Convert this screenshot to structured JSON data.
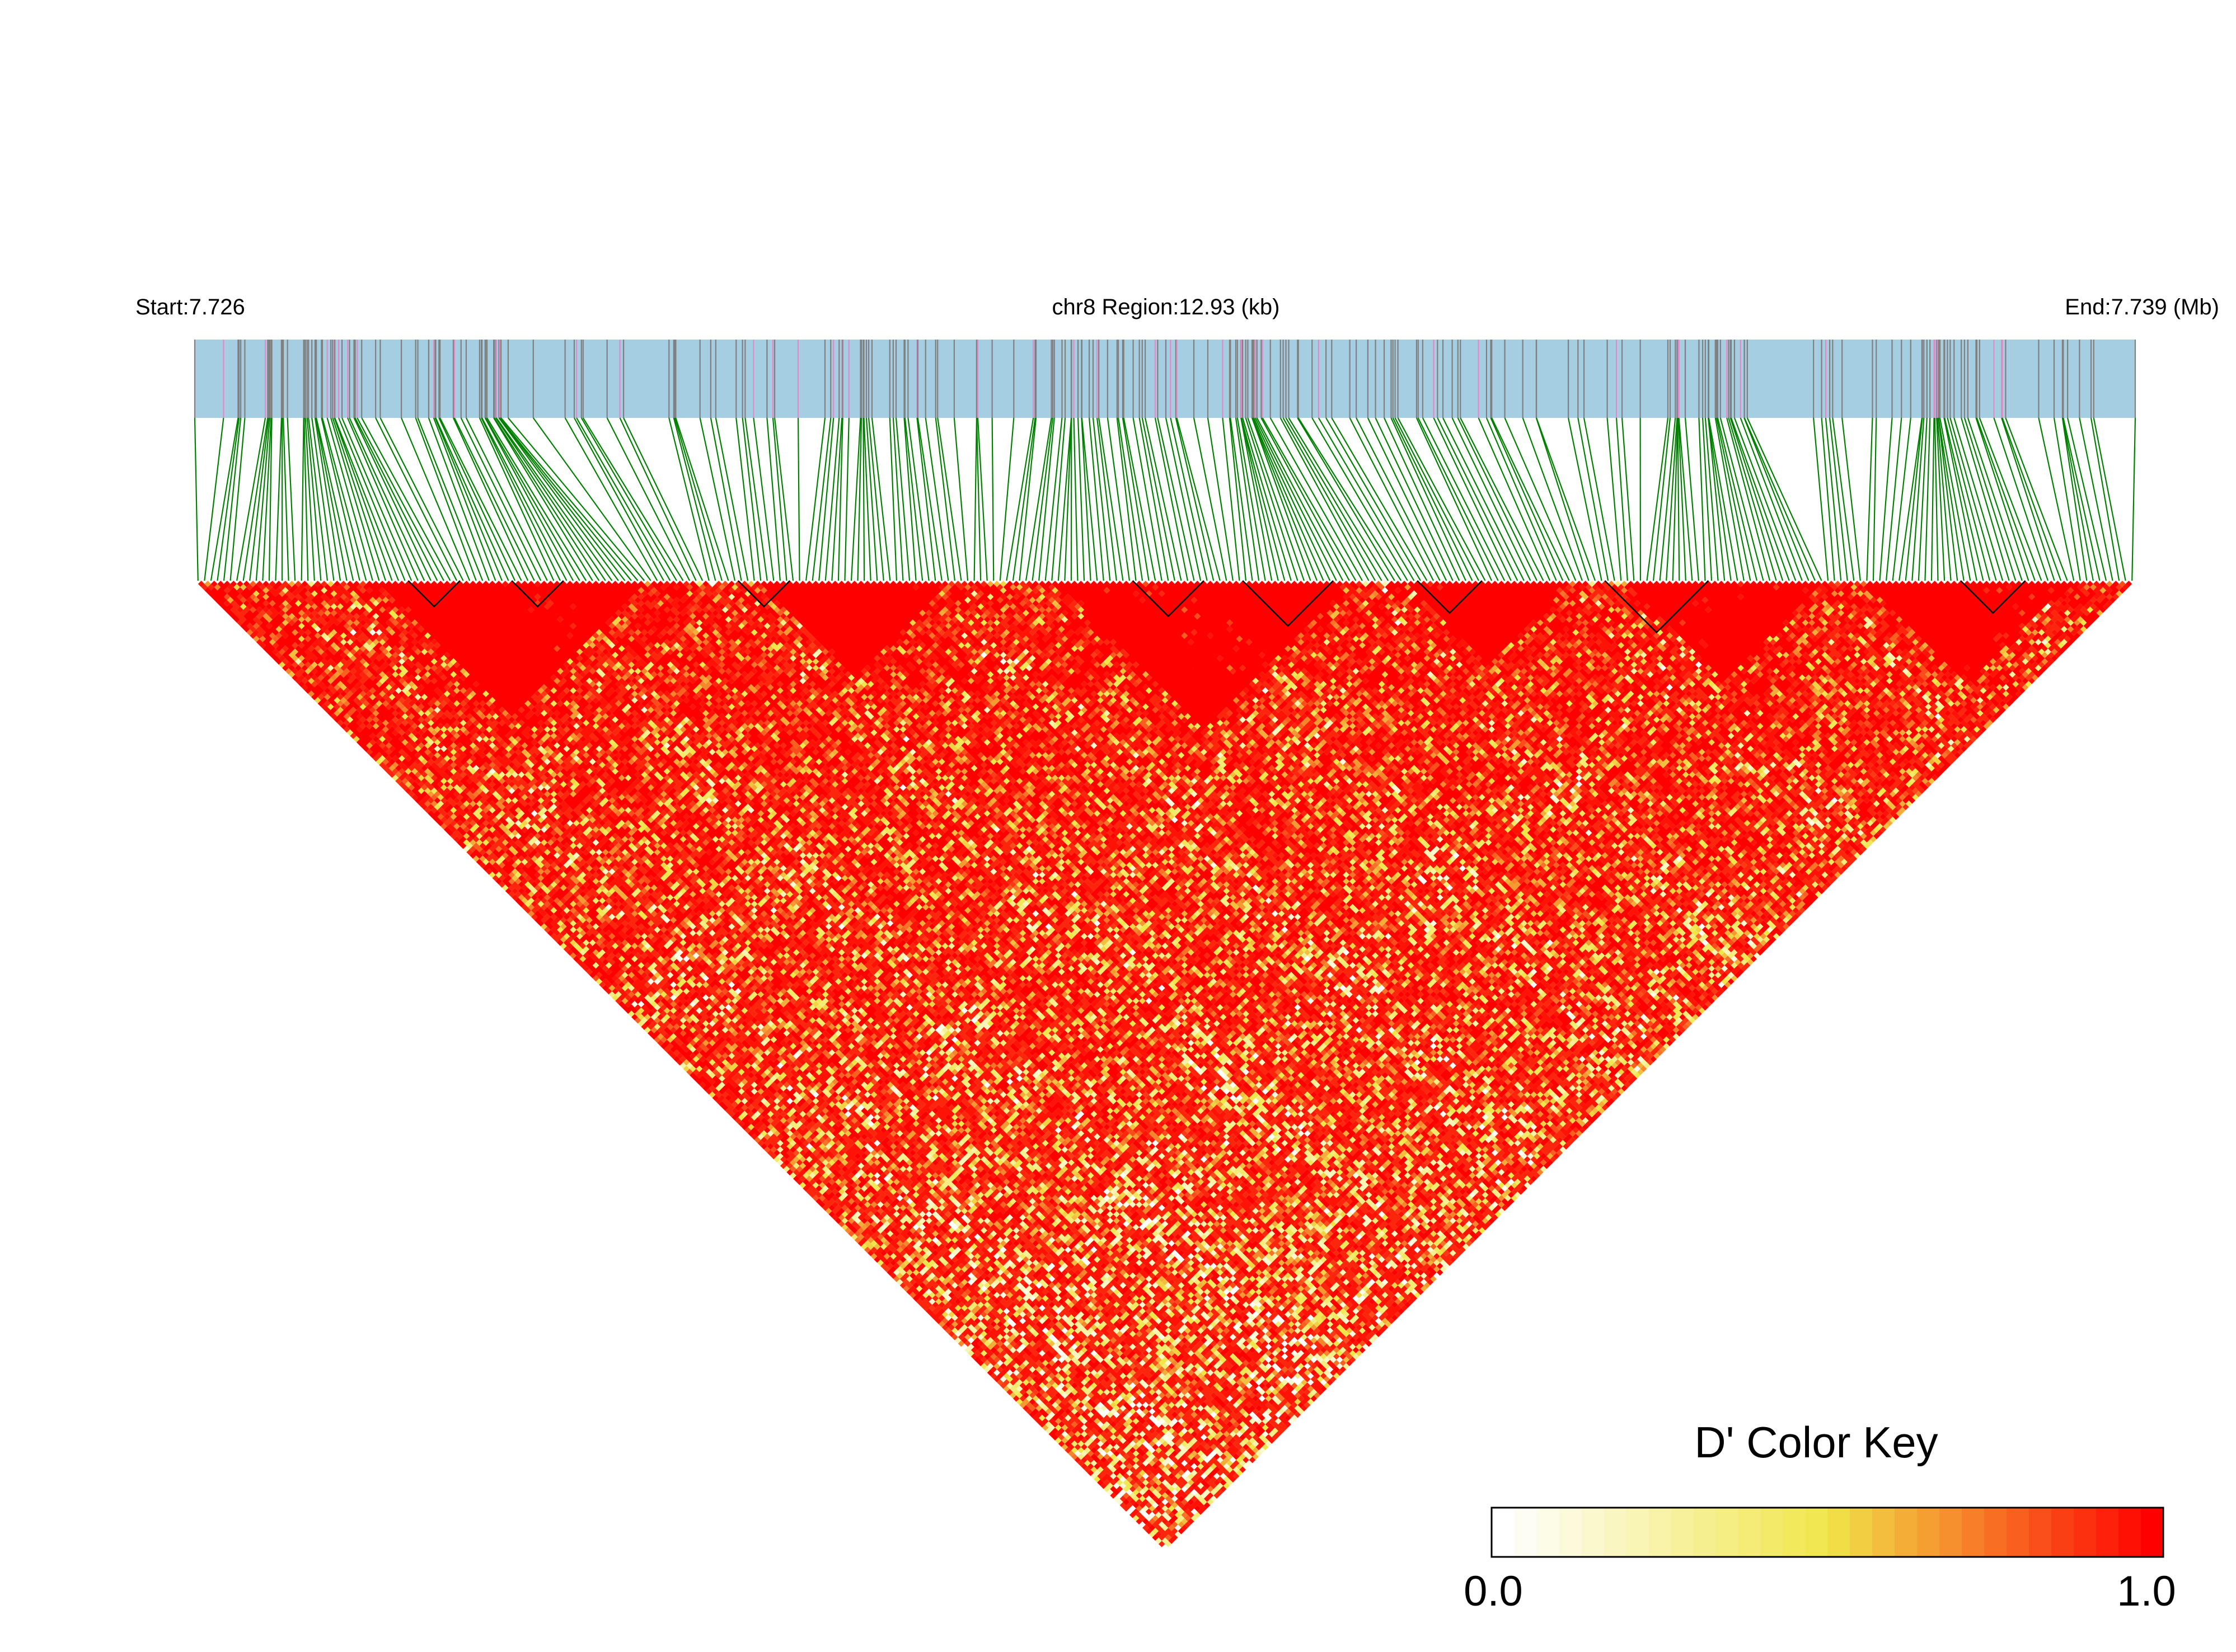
{
  "header": {
    "start_label": "Start:7.726",
    "region_label": "chr8 Region:12.93 (kb)",
    "end_label": "End:7.739 (Mb)"
  },
  "colors": {
    "track_background": "#a6cee3",
    "snp_tick": "#808080",
    "snp_tick_highlight": "#e28ac6",
    "connector": "#008000",
    "ld_low": "#ffffff",
    "ld_mid": "#f0e64a",
    "ld_high": "#ff0000"
  },
  "chart_data": {
    "type": "heatmap",
    "description_of_values": "Pairwise linkage disequilibrium (D') between SNPs, shown as a rotated triangular heatmap",
    "chromosome": "chr8",
    "region_start_mb": 7.726,
    "region_end_mb": 7.739,
    "region_length_kb": 12.93,
    "snp_count_estimate": 300,
    "value_range": [
      0.0,
      1.0
    ],
    "legend": {
      "title": "D' Color Key",
      "min_label": "0.0",
      "max_label": "1.0",
      "placement": "bottom-right"
    }
  }
}
